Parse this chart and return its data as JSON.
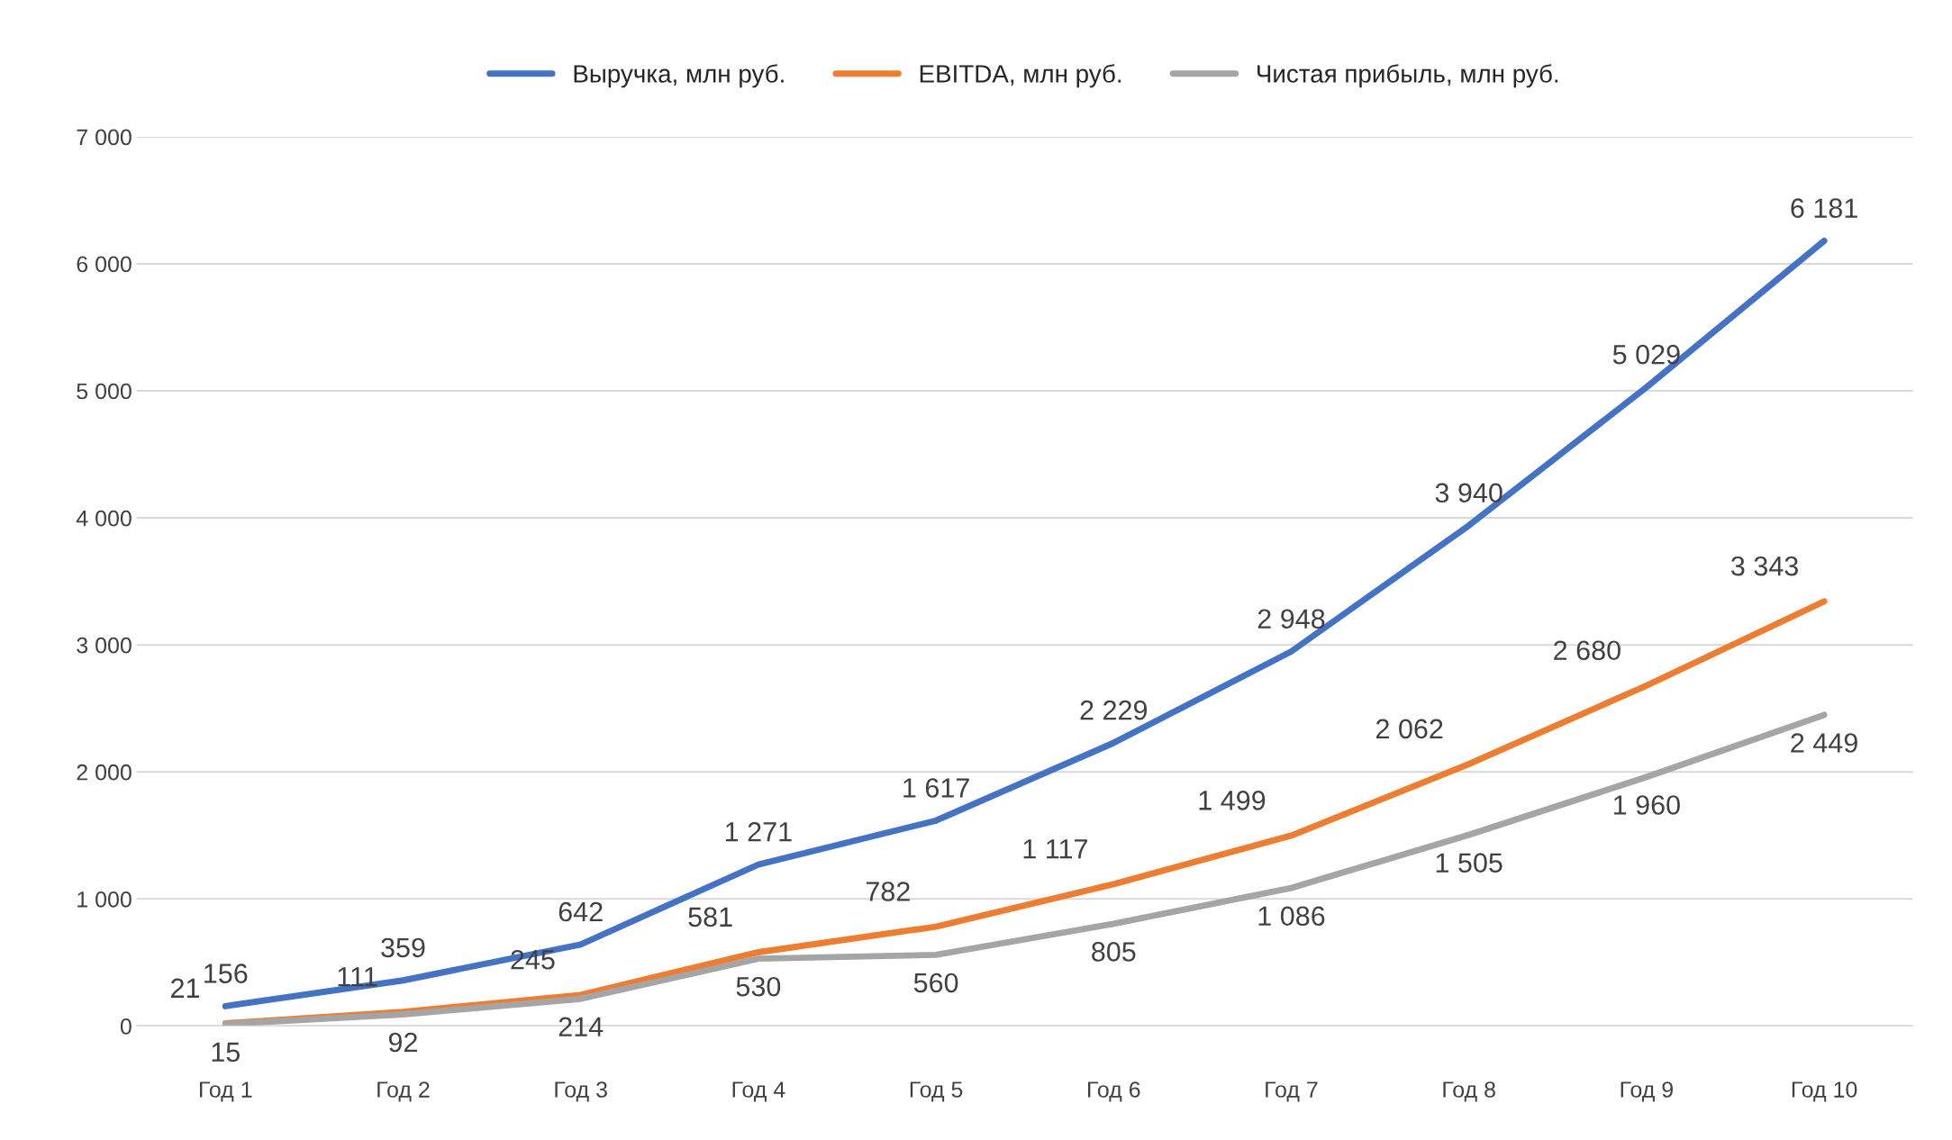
{
  "chart_data": {
    "type": "line",
    "categories": [
      "Год 1",
      "Год 2",
      "Год 3",
      "Год 4",
      "Год 5",
      "Год 6",
      "Год 7",
      "Год 8",
      "Год 9",
      "Год 10"
    ],
    "series": [
      {
        "name": "Выручка, млн руб.",
        "color": "#4472c4",
        "values": [
          156,
          359,
          642,
          1271,
          1617,
          2229,
          2948,
          3940,
          5029,
          6181
        ],
        "value_labels": [
          "156",
          "359",
          "642",
          "1 271",
          "1 617",
          "2 229",
          "2 948",
          "3 940",
          "5 029",
          "6 181"
        ]
      },
      {
        "name": "EBITDA, млн руб.",
        "color": "#ed7d31",
        "values": [
          21,
          111,
          245,
          581,
          782,
          1117,
          1499,
          2062,
          2680,
          3343
        ],
        "value_labels": [
          "21",
          "111",
          "245",
          "581",
          "782",
          "1 117",
          "1 499",
          "2 062",
          "2 680",
          "3 343"
        ]
      },
      {
        "name": "Чистая прибыль, млн руб.",
        "color": "#a5a5a5",
        "values": [
          15,
          92,
          214,
          530,
          560,
          805,
          1086,
          1505,
          1960,
          2449
        ],
        "value_labels": [
          "15",
          "92",
          "214",
          "530",
          "560",
          "805",
          "1 086",
          "1 505",
          "1 960",
          "2 449"
        ]
      }
    ],
    "ylim": [
      0,
      7000
    ],
    "yticks": [
      0,
      {
        "value": 1000,
        "label": "1 000"
      },
      {
        "value": 2000,
        "label": "2 000"
      },
      {
        "value": 3000,
        "label": "3 000"
      },
      {
        "value": 4000,
        "label": "4 000"
      },
      {
        "value": 5000,
        "label": "5 000"
      },
      {
        "value": 6000,
        "label": "6 000"
      },
      {
        "value": 7000,
        "label": "7 000"
      }
    ],
    "grid": "y",
    "legend": "top",
    "marker": "none",
    "line_style": "solid"
  }
}
